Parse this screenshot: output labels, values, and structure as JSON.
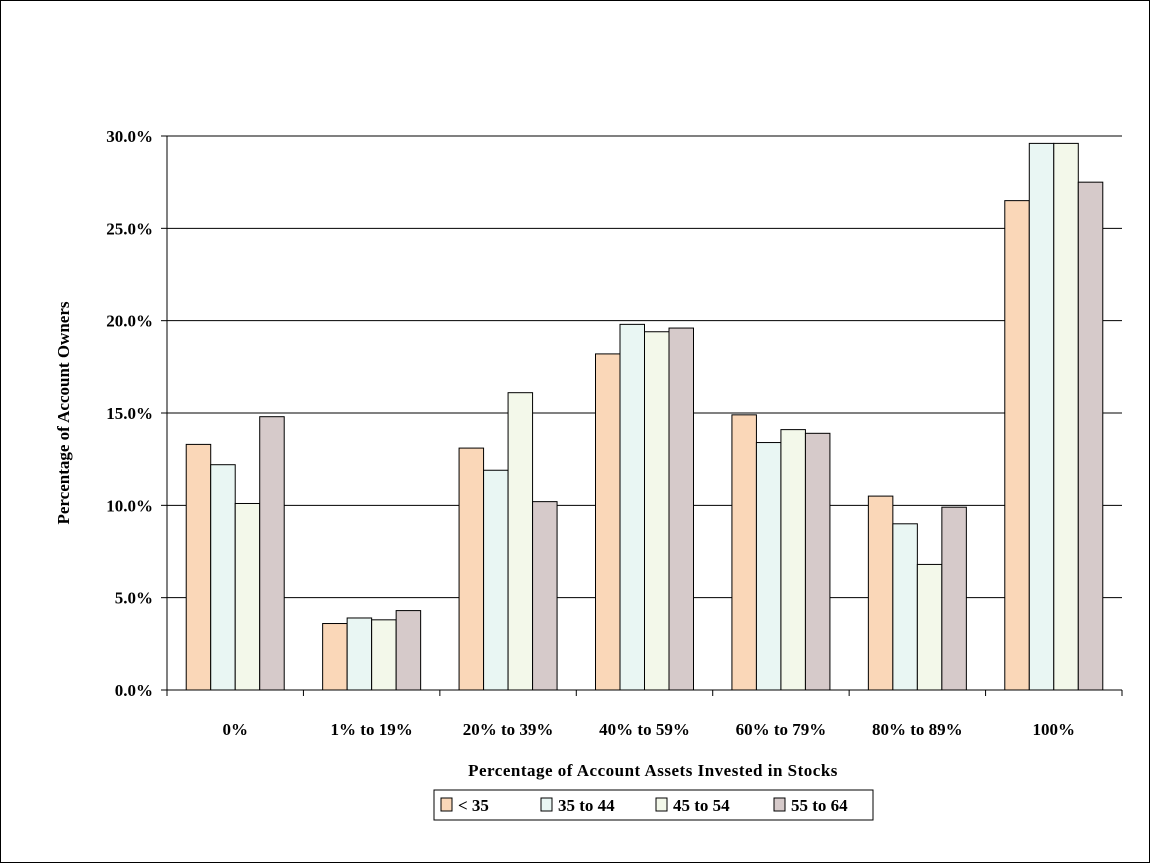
{
  "chart_data": {
    "type": "bar",
    "title": "",
    "xlabel": "Percentage of Account Assets Invested in Stocks",
    "ylabel": "Percentage of Account Owners",
    "ylim": [
      0,
      30
    ],
    "yticks": [
      0,
      5,
      10,
      15,
      20,
      25,
      30
    ],
    "ytick_labels": [
      "0.0%",
      "5.0%",
      "10.0%",
      "15.0%",
      "20.0%",
      "25.0%",
      "30.0%"
    ],
    "categories": [
      "0%",
      "1% to 19%",
      "20% to 39%",
      "40% to 59%",
      "60% to 79%",
      "80% to 89%",
      "100%"
    ],
    "series": [
      {
        "name": "< 35",
        "color": "#FAD7B8",
        "values": [
          13.3,
          3.6,
          13.1,
          18.2,
          14.9,
          10.5,
          26.5
        ]
      },
      {
        "name": "35 to 44",
        "color": "#E9F6F3",
        "values": [
          12.2,
          3.9,
          11.9,
          19.8,
          13.4,
          9.0,
          29.6
        ]
      },
      {
        "name": "45 to 54",
        "color": "#F3F8EA",
        "values": [
          10.1,
          3.8,
          16.1,
          19.4,
          14.1,
          6.8,
          29.6
        ]
      },
      {
        "name": "55 to 64",
        "color": "#D6CACA",
        "values": [
          14.8,
          4.3,
          10.2,
          19.6,
          13.9,
          9.9,
          27.5
        ]
      }
    ],
    "grid": true,
    "legend_position": "bottom"
  }
}
